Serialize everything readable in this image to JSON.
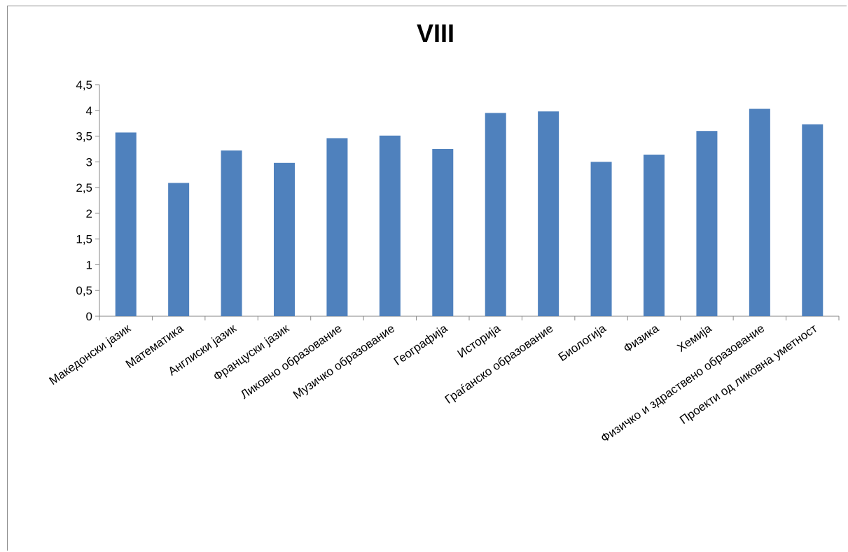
{
  "chart_data": {
    "type": "bar",
    "title": "VIII",
    "xlabel": "",
    "ylabel": "",
    "ylim": [
      0,
      4.5
    ],
    "yticks": [
      "0",
      "0,5",
      "1",
      "1,5",
      "2",
      "2,5",
      "3",
      "3,5",
      "4",
      "4,5"
    ],
    "grid": false,
    "legend": "none",
    "bar_color": "#4f81bd",
    "categories": [
      "Македонски јазик",
      "Математика",
      "Англиски јазик",
      "Француски јазик",
      "Ликовно образование",
      "Музичко образование",
      "Географија",
      "Историја",
      "Граѓанско образование",
      "Биологија",
      "Физика",
      "Хемија",
      "Физичко и здраствено образование",
      "Проекти од ликовна уметност"
    ],
    "values": [
      3.57,
      2.59,
      3.22,
      2.98,
      3.46,
      3.51,
      3.25,
      3.95,
      3.98,
      3.0,
      3.14,
      3.6,
      4.03,
      3.73
    ]
  }
}
